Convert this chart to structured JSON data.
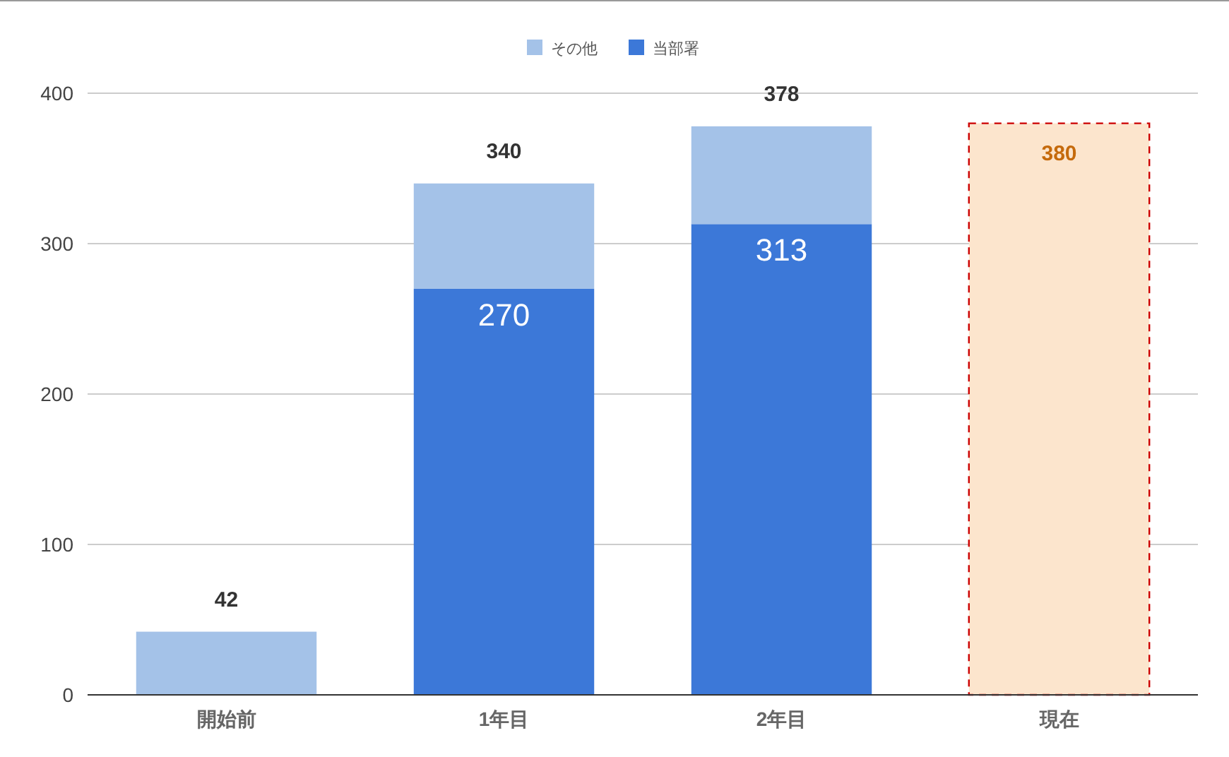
{
  "chart_data": {
    "type": "bar",
    "stacked": true,
    "categories": [
      "開始前",
      "1年目",
      "2年目",
      "現在"
    ],
    "series": [
      {
        "name": "当部署",
        "color": "#3c78d8",
        "values": [
          null,
          270,
          313,
          null
        ],
        "value_labels": [
          null,
          "270",
          "313",
          null
        ]
      },
      {
        "name": "その他",
        "color": "#a4c2e8",
        "values": [
          42,
          70,
          65,
          null
        ]
      },
      {
        "color": "#fce5cd",
        "values": [
          null,
          null,
          null,
          380
        ],
        "value_labels": [
          null,
          null,
          null,
          "380"
        ],
        "line_style": "dashed"
      }
    ],
    "totals": [
      "42",
      "340",
      "378",
      null
    ],
    "ylim": [
      0,
      400
    ],
    "yticks": [
      0,
      100,
      200,
      300,
      400
    ],
    "grid": "y",
    "legend": "top"
  }
}
